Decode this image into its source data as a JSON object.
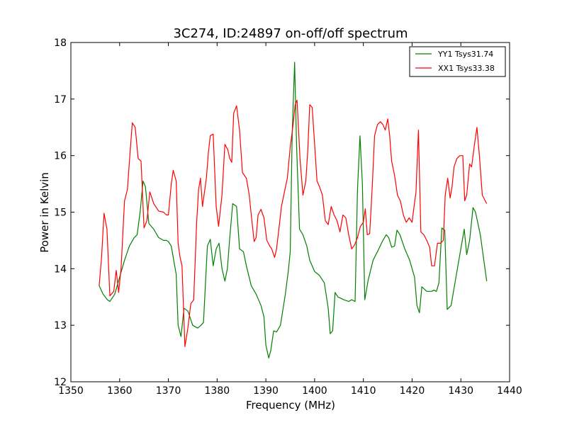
{
  "chart_data": {
    "type": "line",
    "title": "3C274, ID:24897 on-off/off spectrum",
    "xlabel": "Frequency (MHz)",
    "ylabel": "Power in Kelvin",
    "xlim": [
      1350,
      1440
    ],
    "ylim": [
      12,
      18
    ],
    "xticks": [
      1350,
      1360,
      1370,
      1380,
      1390,
      1400,
      1410,
      1420,
      1430,
      1440
    ],
    "yticks": [
      12,
      13,
      14,
      15,
      16,
      17,
      18
    ],
    "grid": false,
    "legend_position": "top-right",
    "series": [
      {
        "name": "YY1 Tsys31.74",
        "color": "#008000",
        "x": [
          1355.8,
          1356.6,
          1357.5,
          1358.0,
          1359.0,
          1360.0,
          1361.0,
          1362.0,
          1363.0,
          1363.6,
          1364.2,
          1364.8,
          1365.3,
          1366.0,
          1367.0,
          1368.0,
          1369.0,
          1369.6,
          1370.0,
          1370.6,
          1371.0,
          1371.6,
          1372.0,
          1372.6,
          1373.2,
          1374.0,
          1375.0,
          1376.0,
          1376.7,
          1377.2,
          1378.0,
          1378.6,
          1379.2,
          1379.8,
          1380.4,
          1381.0,
          1381.6,
          1382.1,
          1382.6,
          1383.2,
          1384.0,
          1384.6,
          1385.4,
          1386.0,
          1387.0,
          1388.0,
          1389.0,
          1389.6,
          1390.0,
          1390.6,
          1391.0,
          1391.6,
          1392.2,
          1393.0,
          1394.0,
          1394.6,
          1395.0,
          1395.4,
          1395.9,
          1396.3,
          1396.9,
          1397.6,
          1398.4,
          1399.0,
          1400.0,
          1401.0,
          1402.0,
          1402.8,
          1403.2,
          1403.7,
          1404.2,
          1404.8,
          1406.0,
          1407.0,
          1407.6,
          1408.3,
          1408.8,
          1409.3,
          1409.8,
          1410.3,
          1411.0,
          1412.0,
          1413.0,
          1414.0,
          1414.7,
          1415.2,
          1415.8,
          1416.4,
          1416.9,
          1417.5,
          1418.5,
          1419.5,
          1420.5,
          1421.0,
          1421.5,
          1422.0,
          1423.0,
          1424.0,
          1424.5,
          1425.0,
          1425.5,
          1426.1,
          1426.7,
          1427.2,
          1428.0,
          1429.0,
          1430.0,
          1430.7,
          1431.2,
          1431.8,
          1432.5,
          1433.0,
          1434.0,
          1435.3
        ],
        "values": [
          13.7,
          13.55,
          13.45,
          13.42,
          13.55,
          13.85,
          14.15,
          14.4,
          14.55,
          14.6,
          15.0,
          15.55,
          15.45,
          14.8,
          14.7,
          14.55,
          14.5,
          14.5,
          14.48,
          14.4,
          14.2,
          13.9,
          13.0,
          12.8,
          13.3,
          13.25,
          13.0,
          12.95,
          13.0,
          13.05,
          14.4,
          14.52,
          14.05,
          14.35,
          14.45,
          14.0,
          13.78,
          14.0,
          14.55,
          15.15,
          15.1,
          14.35,
          14.3,
          14.05,
          13.7,
          13.55,
          13.35,
          13.15,
          12.65,
          12.42,
          12.55,
          12.9,
          12.88,
          13.0,
          13.55,
          13.95,
          14.3,
          16.4,
          17.65,
          16.2,
          14.7,
          14.6,
          14.4,
          14.15,
          13.95,
          13.88,
          13.75,
          13.3,
          12.85,
          12.9,
          13.58,
          13.5,
          13.45,
          13.42,
          13.45,
          13.42,
          15.4,
          16.35,
          15.5,
          13.45,
          13.8,
          14.15,
          14.32,
          14.5,
          14.6,
          14.55,
          14.38,
          14.4,
          14.68,
          14.6,
          14.35,
          14.15,
          13.85,
          13.35,
          13.22,
          13.68,
          13.6,
          13.6,
          13.62,
          13.6,
          13.75,
          14.72,
          14.68,
          13.28,
          13.35,
          13.85,
          14.35,
          14.7,
          14.25,
          14.5,
          15.08,
          15.0,
          14.6,
          13.78
        ]
      },
      {
        "name": "XX1 Tsys33.38",
        "color": "#ff0000",
        "x": [
          1355.8,
          1356.3,
          1356.8,
          1357.4,
          1358.0,
          1358.8,
          1359.3,
          1359.8,
          1360.3,
          1361.0,
          1361.6,
          1362.1,
          1362.6,
          1363.2,
          1363.8,
          1364.4,
          1365.0,
          1365.6,
          1366.2,
          1367.0,
          1368.0,
          1369.0,
          1369.6,
          1370.0,
          1370.6,
          1371.0,
          1371.6,
          1372.0,
          1372.4,
          1372.8,
          1373.4,
          1374.0,
          1374.6,
          1375.2,
          1375.8,
          1376.2,
          1376.6,
          1377.0,
          1377.8,
          1378.2,
          1378.6,
          1379.2,
          1379.8,
          1380.3,
          1381.0,
          1381.6,
          1382.2,
          1382.6,
          1383.0,
          1383.4,
          1384.0,
          1384.6,
          1385.2,
          1386.0,
          1386.6,
          1387.0,
          1387.6,
          1388.0,
          1388.4,
          1389.0,
          1389.6,
          1390.2,
          1390.8,
          1391.2,
          1391.8,
          1392.2,
          1392.8,
          1393.2,
          1393.8,
          1394.4,
          1395.0,
          1395.6,
          1396.0,
          1396.4,
          1397.0,
          1397.6,
          1398.2,
          1398.6,
          1399.0,
          1399.5,
          1400.0,
          1400.5,
          1401.0,
          1401.6,
          1402.2,
          1402.8,
          1403.4,
          1404.0,
          1404.6,
          1405.2,
          1405.8,
          1406.4,
          1407.0,
          1407.6,
          1408.2,
          1408.8,
          1409.4,
          1410.0,
          1410.4,
          1410.8,
          1411.3,
          1411.8,
          1412.3,
          1412.9,
          1413.5,
          1414.0,
          1414.5,
          1415.0,
          1415.4,
          1415.8,
          1416.4,
          1417.0,
          1417.6,
          1418.2,
          1418.8,
          1419.4,
          1420.0,
          1420.4,
          1420.8,
          1421.3,
          1421.8,
          1422.4,
          1423.0,
          1423.6,
          1424.0,
          1424.6,
          1425.2,
          1425.8,
          1426.4,
          1426.8,
          1427.3,
          1427.8,
          1428.2,
          1428.6,
          1429.2,
          1429.8,
          1430.4,
          1430.8,
          1431.2,
          1431.8,
          1432.2,
          1432.8,
          1433.3,
          1433.8,
          1434.4,
          1435.3
        ],
        "values": [
          13.7,
          14.2,
          14.98,
          14.7,
          13.52,
          13.6,
          13.97,
          13.58,
          14.0,
          15.2,
          15.4,
          16.0,
          16.58,
          16.5,
          15.95,
          15.9,
          14.72,
          14.85,
          15.36,
          15.15,
          15.02,
          15.0,
          14.95,
          14.95,
          15.5,
          15.74,
          15.55,
          14.45,
          14.2,
          14.05,
          12.62,
          12.95,
          13.38,
          13.45,
          14.8,
          15.4,
          15.6,
          15.1,
          15.6,
          16.05,
          16.35,
          16.38,
          15.1,
          14.75,
          15.3,
          16.2,
          16.1,
          15.95,
          15.88,
          16.75,
          16.88,
          16.45,
          15.7,
          15.6,
          15.3,
          14.95,
          14.48,
          14.55,
          14.95,
          15.05,
          14.9,
          14.5,
          14.4,
          14.35,
          14.2,
          14.35,
          14.8,
          15.1,
          15.35,
          15.6,
          16.15,
          16.55,
          16.9,
          16.98,
          15.95,
          15.3,
          15.55,
          16.1,
          16.9,
          16.85,
          16.2,
          15.55,
          15.45,
          15.3,
          14.85,
          14.78,
          15.1,
          14.95,
          14.85,
          14.65,
          14.95,
          14.9,
          14.6,
          14.35,
          14.42,
          14.55,
          14.75,
          14.82,
          15.06,
          14.6,
          14.62,
          15.4,
          16.35,
          16.55,
          16.6,
          16.55,
          16.45,
          16.65,
          16.35,
          15.9,
          15.65,
          15.3,
          15.2,
          14.95,
          14.82,
          14.9,
          14.82,
          15.1,
          15.35,
          16.45,
          14.65,
          14.6,
          14.5,
          14.38,
          14.05,
          14.05,
          14.45,
          14.45,
          14.5,
          15.3,
          15.6,
          15.25,
          15.45,
          15.8,
          15.95,
          16.0,
          16.0,
          15.2,
          15.3,
          15.85,
          15.8,
          16.2,
          16.5,
          16.0,
          15.3,
          15.15
        ]
      }
    ]
  }
}
